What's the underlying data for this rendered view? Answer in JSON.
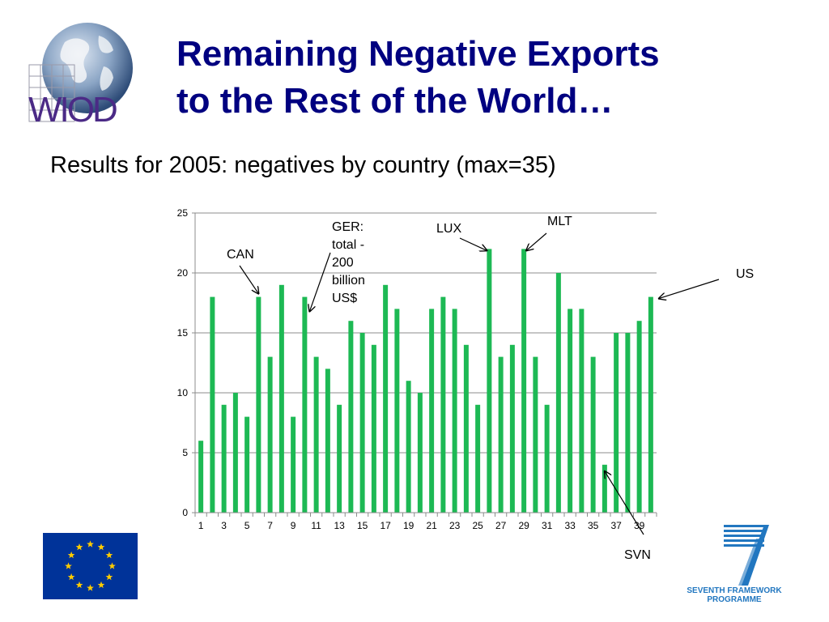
{
  "slide": {
    "title_line1": "Remaining Negative Exports",
    "title_line2": "to the Rest of the World…",
    "subtitle": "Results for 2005: negatives by country (max=35)"
  },
  "logos": {
    "wiod_text": "WIOD",
    "fp7_line1": "SEVENTH FRAMEWORK",
    "fp7_line2": "PROGRAMME",
    "eu_flag": "eu-flag-icon",
    "globe": "globe-icon"
  },
  "colors": {
    "title": "#000080",
    "bar": "#1db954",
    "wiod": "#4b2a86",
    "fp7": "#2277c0",
    "eu_blue": "#003399",
    "eu_star": "#ffcc00"
  },
  "chart_data": {
    "type": "bar",
    "categories": [
      "1",
      "2",
      "3",
      "4",
      "5",
      "6",
      "7",
      "8",
      "9",
      "10",
      "11",
      "12",
      "13",
      "14",
      "15",
      "16",
      "17",
      "18",
      "19",
      "20",
      "21",
      "22",
      "23",
      "24",
      "25",
      "26",
      "27",
      "28",
      "29",
      "30",
      "31",
      "32",
      "33",
      "34",
      "35",
      "36",
      "37",
      "38",
      "39",
      "40"
    ],
    "x_tick_labels": [
      "1",
      "3",
      "5",
      "7",
      "9",
      "11",
      "13",
      "15",
      "17",
      "19",
      "21",
      "23",
      "25",
      "27",
      "29",
      "31",
      "33",
      "35",
      "37",
      "39"
    ],
    "values": [
      6,
      18,
      9,
      10,
      8,
      18,
      13,
      19,
      8,
      18,
      13,
      12,
      9,
      16,
      15,
      14,
      19,
      17,
      11,
      10,
      17,
      18,
      17,
      14,
      9,
      22,
      13,
      14,
      22,
      13,
      9,
      20,
      17,
      17,
      13,
      4,
      15,
      15,
      16,
      18
    ],
    "ylim": [
      0,
      25
    ],
    "y_ticks": [
      0,
      5,
      10,
      15,
      20,
      25
    ],
    "grid": true,
    "annotations": [
      {
        "label": "CAN",
        "category": 6
      },
      {
        "label": "GER: total - 200 billion US$",
        "lines": [
          "GER:",
          "total -",
          "200",
          "billion",
          "US$"
        ],
        "category": 10
      },
      {
        "label": "LUX",
        "category": 26
      },
      {
        "label": "MLT",
        "category": 29
      },
      {
        "label": "SVN",
        "category": 36
      },
      {
        "label": "US",
        "category": 40
      }
    ]
  }
}
